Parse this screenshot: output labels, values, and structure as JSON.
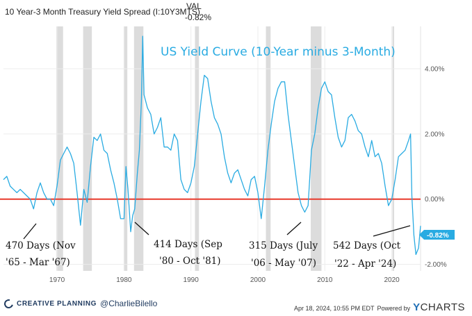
{
  "header": {
    "series_label": "10 Year-3 Month Treasury Yield Spread (I:10Y3MTS)",
    "val_label": "VAL",
    "val_value": "-0.82%"
  },
  "chart_data": {
    "type": "line",
    "title": "US Yield Curve (10-Year minus 3-Month)",
    "xlabel": "",
    "ylabel": "",
    "x_ticks": [
      "1970",
      "1980",
      "1990",
      "2000",
      "2010",
      "2020"
    ],
    "y_ticks": [
      "4.00%",
      "2.00%",
      "0.00%",
      "-2.00%"
    ],
    "xlim": [
      1962,
      2024.3
    ],
    "ylim": [
      -2.2,
      5.3
    ],
    "grid": true,
    "zero_line_color": "#e8392b",
    "line_color": "#29abe2",
    "recession_color": "#dcdcdc",
    "current_value_label": "-0.82%",
    "recessions": [
      [
        1969.9,
        1970.9
      ],
      [
        1973.9,
        1975.2
      ],
      [
        1980.0,
        1980.5
      ],
      [
        1981.5,
        1982.9
      ],
      [
        1990.6,
        1991.2
      ],
      [
        2001.2,
        2001.9
      ],
      [
        2007.9,
        2009.5
      ],
      [
        2020.1,
        2020.35
      ]
    ],
    "series": [
      {
        "x": [
          1962.0,
          1962.5,
          1963.0,
          1963.5,
          1964.0,
          1964.5,
          1965.0,
          1965.5,
          1966.0,
          1966.5,
          1967.0,
          1967.5,
          1968.0,
          1968.5,
          1969.0,
          1969.5,
          1970.0,
          1970.5,
          1971.0,
          1971.5,
          1972.0,
          1972.5,
          1973.0,
          1973.5,
          1974.0,
          1974.5,
          1975.0,
          1975.5,
          1976.0,
          1976.5,
          1977.0,
          1977.5,
          1978.0,
          1978.5,
          1979.0,
          1979.5,
          1980.0,
          1980.3,
          1980.6,
          1981.0,
          1981.3,
          1981.6,
          1982.0,
          1982.3,
          1982.6,
          1982.8,
          1983.0,
          1983.5,
          1984.0,
          1984.5,
          1985.0,
          1985.5,
          1986.0,
          1986.5,
          1987.0,
          1987.5,
          1988.0,
          1988.5,
          1989.0,
          1989.5,
          1990.0,
          1990.5,
          1991.0,
          1991.5,
          1992.0,
          1992.5,
          1993.0,
          1993.5,
          1994.0,
          1994.5,
          1995.0,
          1995.5,
          1996.0,
          1996.5,
          1997.0,
          1997.5,
          1998.0,
          1998.5,
          1999.0,
          1999.5,
          2000.0,
          2000.5,
          2001.0,
          2001.5,
          2002.0,
          2002.5,
          2003.0,
          2003.5,
          2004.0,
          2004.5,
          2005.0,
          2005.5,
          2006.0,
          2006.5,
          2007.0,
          2007.5,
          2008.0,
          2008.5,
          2009.0,
          2009.5,
          2010.0,
          2010.5,
          2011.0,
          2011.5,
          2012.0,
          2012.5,
          2013.0,
          2013.5,
          2014.0,
          2014.5,
          2015.0,
          2015.5,
          2016.0,
          2016.5,
          2017.0,
          2017.5,
          2018.0,
          2018.5,
          2019.0,
          2019.5,
          2020.0,
          2020.5,
          2021.0,
          2021.5,
          2022.0,
          2022.5,
          2022.8,
          2023.0,
          2023.3,
          2023.6,
          2024.0,
          2024.3
        ],
        "y": [
          0.6,
          0.7,
          0.4,
          0.3,
          0.2,
          0.3,
          0.2,
          0.1,
          0.0,
          -0.3,
          0.2,
          0.5,
          0.2,
          0.0,
          0.0,
          -0.2,
          0.4,
          1.2,
          1.4,
          1.6,
          1.4,
          1.1,
          0.2,
          -0.8,
          0.3,
          -0.1,
          1.0,
          1.9,
          1.8,
          2.0,
          1.5,
          1.4,
          0.9,
          0.5,
          0.0,
          -0.6,
          -0.6,
          1.0,
          0.3,
          -1.0,
          -0.5,
          -0.3,
          0.8,
          1.5,
          3.0,
          5.0,
          3.2,
          2.8,
          2.6,
          2.0,
          2.2,
          2.5,
          1.6,
          1.6,
          1.5,
          2.0,
          1.8,
          0.6,
          0.3,
          0.2,
          0.5,
          1.0,
          2.0,
          3.0,
          3.8,
          3.7,
          3.0,
          2.5,
          2.3,
          2.0,
          1.3,
          0.8,
          0.5,
          0.8,
          0.9,
          0.6,
          0.3,
          0.1,
          0.6,
          0.7,
          0.2,
          -0.6,
          0.4,
          1.5,
          2.3,
          3.0,
          3.4,
          3.6,
          3.6,
          2.6,
          1.8,
          1.0,
          0.2,
          -0.2,
          -0.4,
          -0.2,
          1.5,
          2.0,
          2.8,
          3.4,
          3.6,
          3.3,
          3.2,
          2.5,
          1.9,
          1.6,
          1.8,
          2.5,
          2.6,
          2.4,
          2.1,
          2.0,
          1.6,
          1.3,
          1.8,
          1.3,
          1.4,
          1.1,
          0.4,
          -0.2,
          0.0,
          0.6,
          1.3,
          1.4,
          1.5,
          1.8,
          2.0,
          0.1,
          -1.1,
          -1.7,
          -1.5,
          -0.82
        ]
      }
    ]
  },
  "annotations": [
    {
      "line1": "470 Days (Nov",
      "line2": "'65 - Mar '67)"
    },
    {
      "line1": "414 Days (Sep",
      "line2": "'80 - Oct '81)"
    },
    {
      "line1": "315 Days (July",
      "line2": "'06 - May '07)"
    },
    {
      "line1": "542 Days (Oct",
      "line2": "'22 - Apr '24)"
    }
  ],
  "footer": {
    "brand": "CREATIVE PLANNING",
    "handle": "@CharlieBilello",
    "date": "Apr 18, 2024, 10:55 PM EDT",
    "powered_by": "Powered by",
    "ycharts": "CHARTS",
    "ycharts_y": "Y"
  }
}
